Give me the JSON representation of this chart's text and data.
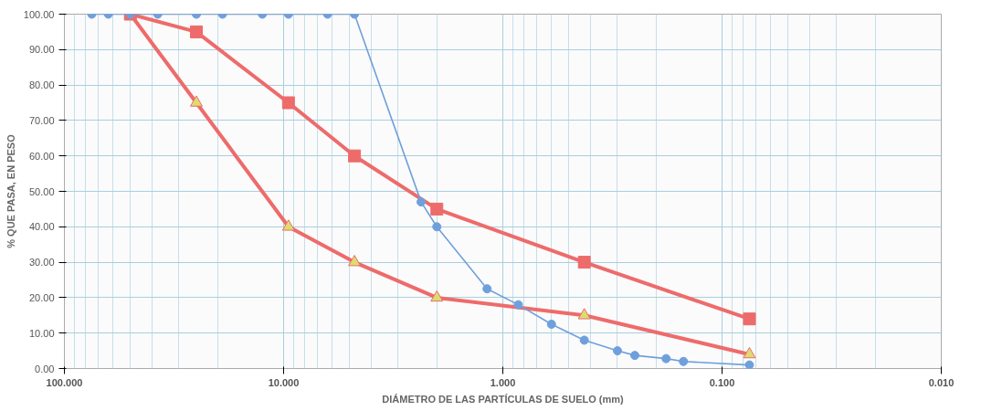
{
  "chart_data": {
    "type": "line",
    "xlabel": "DIÁMETRO DE LAS PARTÍCULAS DE SUELO (mm)",
    "ylabel": "% QUE PASA, EN PESO",
    "log": "x",
    "grid": true,
    "line_style": "solid",
    "xlim": [
      100,
      0.01
    ],
    "xticks": [
      {
        "value": 100,
        "label": "100.000"
      },
      {
        "value": 10,
        "label": "10.000"
      },
      {
        "value": 1,
        "label": "1.000"
      },
      {
        "value": 0.1,
        "label": "0.100"
      },
      {
        "value": 0.01,
        "label": "0.010"
      }
    ],
    "ylim": [
      0,
      100
    ],
    "yticks": [
      {
        "value": 0,
        "label": "0.00"
      },
      {
        "value": 10,
        "label": "10.00"
      },
      {
        "value": 20,
        "label": "20.00"
      },
      {
        "value": 30,
        "label": "30.00"
      },
      {
        "value": 40,
        "label": "40.00"
      },
      {
        "value": 50,
        "label": "50.00"
      },
      {
        "value": 60,
        "label": "60.00"
      },
      {
        "value": 70,
        "label": "70.00"
      },
      {
        "value": 80,
        "label": "80.00"
      },
      {
        "value": 90,
        "label": "90.00"
      },
      {
        "value": 100,
        "label": "100.00"
      }
    ],
    "series": [
      {
        "color": "#6fa0dc",
        "marker": "circle",
        "x": [
          75,
          63,
          50,
          37.5,
          25,
          19,
          12.5,
          9.5,
          6.3,
          4.75,
          2.36,
          2.0,
          1.18,
          0.85,
          0.6,
          0.425,
          0.3,
          0.25,
          0.18,
          0.15,
          0.075
        ],
        "values": [
          100,
          100,
          100,
          100,
          100,
          100,
          100,
          100,
          100,
          100,
          47,
          40,
          22.5,
          18,
          12.5,
          8,
          5,
          3.7,
          2.8,
          2,
          1
        ]
      },
      {
        "color": "#ee6b6b",
        "marker": "square",
        "x": [
          50,
          25,
          9.5,
          4.75,
          2.0,
          0.425,
          0.075
        ],
        "values": [
          100,
          95,
          75,
          60,
          45,
          30,
          14
        ]
      },
      {
        "color": "#ee6b6b",
        "marker": "triangle",
        "x": [
          50,
          25,
          9.5,
          4.75,
          2.0,
          0.425,
          0.075
        ],
        "values": [
          100,
          75,
          40,
          30,
          20,
          15,
          4
        ]
      }
    ]
  }
}
